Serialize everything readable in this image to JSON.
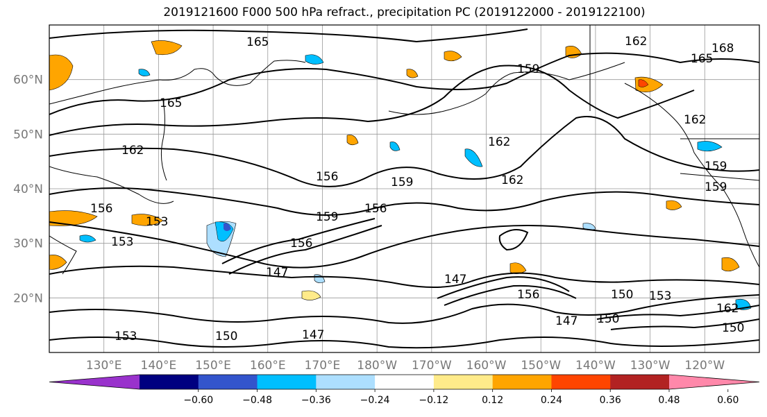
{
  "title": "2019121600 F000 500 hPa refract., precipitation PC (2019122000 - 2019122100)",
  "chart_data": {
    "type": "contour map",
    "lon_labels": [
      "130°E",
      "140°E",
      "150°E",
      "160°E",
      "170°E",
      "180°W",
      "170°W",
      "160°W",
      "150°W",
      "140°W",
      "130°W",
      "120°W"
    ],
    "lat_labels": [
      "60°N",
      "50°N",
      "40°N",
      "30°N",
      "20°N"
    ],
    "lon_range": [
      120,
      250
    ],
    "lat_range": [
      10,
      70
    ],
    "grid": true,
    "contour_levels_labeled": [
      "165",
      "162",
      "159",
      "156",
      "153",
      "150",
      "147",
      "168"
    ],
    "colorbar": {
      "ticks": [
        "−0.60",
        "−0.48",
        "−0.36",
        "−0.24",
        "−0.12",
        "0.12",
        "0.24",
        "0.36",
        "0.48",
        "0.60"
      ],
      "colors": [
        "#9932CC",
        "#000080",
        "#3355CC",
        "#00BFFF",
        "#ADDFFF",
        "#FFFFFF",
        "#FFEB8A",
        "#FFA500",
        "#FF4500",
        "#B22222",
        "#FF88AA"
      ],
      "extend": "both"
    }
  }
}
